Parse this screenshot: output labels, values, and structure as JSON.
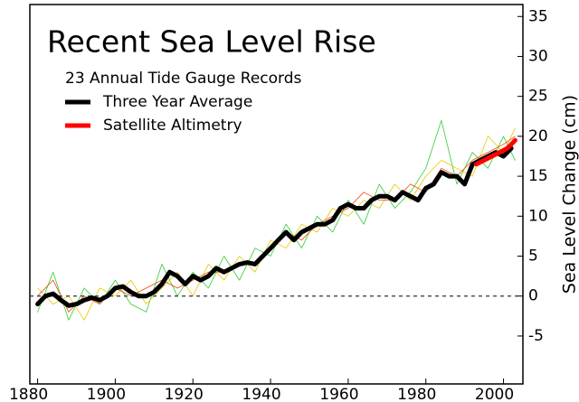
{
  "chart_data": {
    "type": "line",
    "title": "Recent Sea Level Rise",
    "subtitle": "23 Annual Tide Gauge Records",
    "y_label": "Sea Level Change (cm)",
    "xlim": [
      1878,
      2005
    ],
    "xticks": [
      1880,
      1900,
      1920,
      1940,
      1960,
      1980,
      2000
    ],
    "ylim": [
      -11,
      36.5
    ],
    "yticks": [
      -5,
      0,
      5,
      10,
      15,
      20,
      25,
      30,
      35
    ],
    "reference_line": 0,
    "background_series": [
      {
        "color": "#33cc33",
        "x": [
          1880,
          1884,
          1888,
          1892,
          1896,
          1900,
          1904,
          1908,
          1912,
          1916,
          1920,
          1924,
          1928,
          1932,
          1936,
          1940,
          1944,
          1948,
          1952,
          1956,
          1960,
          1964,
          1968,
          1972,
          1976,
          1980,
          1984,
          1988,
          1992,
          1996,
          2000,
          2003
        ],
        "values": [
          -2,
          3,
          -3,
          1,
          -1,
          2,
          -1,
          -2,
          4,
          0,
          3,
          1,
          5,
          2,
          6,
          5,
          9,
          6,
          10,
          8,
          12,
          9,
          14,
          11,
          13,
          16,
          22,
          14,
          18,
          16,
          20,
          17
        ]
      },
      {
        "color": "#e6c800",
        "x": [
          1880,
          1884,
          1888,
          1892,
          1896,
          1900,
          1904,
          1908,
          1912,
          1916,
          1920,
          1924,
          1928,
          1932,
          1936,
          1940,
          1944,
          1948,
          1952,
          1956,
          1960,
          1964,
          1968,
          1972,
          1976,
          1980,
          1984,
          1988,
          1992,
          1996,
          2000,
          2003
        ],
        "values": [
          1,
          -1,
          0,
          -3,
          1,
          0,
          2,
          -1,
          1,
          3,
          0,
          4,
          2,
          5,
          3,
          7,
          6,
          9,
          8,
          11,
          10,
          12,
          11,
          14,
          12,
          15,
          17,
          16,
          15,
          20,
          18,
          21
        ]
      },
      {
        "color": "#ff4400",
        "x": [
          1880,
          1884,
          1888,
          1892,
          1896,
          1900,
          1904,
          1908,
          1912,
          1916,
          1920,
          1924,
          1928,
          1932,
          1936,
          1940,
          1944,
          1948,
          1952,
          1956,
          1960,
          1964,
          1968,
          1972,
          1976,
          1980,
          1984,
          1988,
          1992,
          1996,
          2000,
          2003
        ],
        "values": [
          0,
          2,
          -2,
          0,
          -1,
          1,
          0,
          1,
          2,
          1,
          2,
          3,
          3,
          4,
          4,
          6,
          8,
          7,
          9,
          10,
          11,
          13,
          12,
          12,
          14,
          13,
          16,
          15,
          17,
          18,
          19,
          20
        ]
      }
    ],
    "series": [
      {
        "name": "Three Year Average",
        "color": "#000000",
        "width": 5,
        "x": [
          1880,
          1882,
          1884,
          1886,
          1888,
          1890,
          1892,
          1894,
          1896,
          1898,
          1900,
          1902,
          1904,
          1906,
          1908,
          1910,
          1912,
          1914,
          1916,
          1918,
          1920,
          1922,
          1924,
          1926,
          1928,
          1930,
          1932,
          1934,
          1936,
          1938,
          1940,
          1942,
          1944,
          1946,
          1948,
          1950,
          1952,
          1954,
          1956,
          1958,
          1960,
          1962,
          1964,
          1966,
          1968,
          1970,
          1972,
          1974,
          1976,
          1978,
          1980,
          1982,
          1984,
          1986,
          1988,
          1990,
          1992,
          1994,
          1996,
          1998,
          2000,
          2002
        ],
        "values": [
          -1,
          0,
          0.3,
          -0.5,
          -1.2,
          -1,
          -0.5,
          -0.2,
          -0.5,
          0,
          1,
          1.2,
          0.5,
          0,
          0,
          0.5,
          1.5,
          3,
          2.5,
          1.5,
          2.5,
          2,
          2.5,
          3.5,
          3,
          3.5,
          4,
          4.2,
          4,
          5,
          6,
          7,
          8,
          7,
          8,
          8.5,
          9,
          9,
          9.5,
          11,
          11.5,
          11,
          11,
          12,
          12.5,
          12.5,
          12,
          13,
          12.5,
          12,
          13.5,
          14,
          15.5,
          15,
          15,
          14,
          16.5,
          17,
          17.5,
          18,
          17.5,
          18.5
        ]
      },
      {
        "name": "Satellite Altimetry",
        "color": "#ff0000",
        "width": 5,
        "x": [
          1993,
          1995,
          1997,
          1999,
          2001,
          2003
        ],
        "values": [
          16.5,
          17,
          17.5,
          18,
          18.5,
          19.5
        ]
      }
    ]
  }
}
